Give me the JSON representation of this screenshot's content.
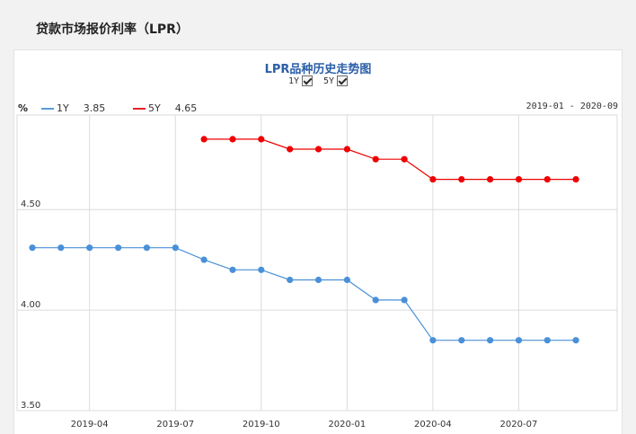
{
  "page_title": "贷款市场报价利率（LPR）",
  "chart_title": "LPR品种历史走势图",
  "toggles": [
    {
      "label": "1Y",
      "checked": true
    },
    {
      "label": "5Y",
      "checked": true
    }
  ],
  "unit_label": "%",
  "legend": [
    {
      "name": "1Y",
      "value": "3.85",
      "color": "#5b9bd5"
    },
    {
      "name": "5Y",
      "value": "4.65",
      "color": "#e8212a"
    }
  ],
  "date_range": "2019-01 - 2020-09",
  "chart_data": {
    "type": "line",
    "x": [
      "2019-02",
      "2019-03",
      "2019-04",
      "2019-05",
      "2019-06",
      "2019-07",
      "2019-08",
      "2019-09",
      "2019-10",
      "2019-11",
      "2019-12",
      "2020-01",
      "2020-02",
      "2020-03",
      "2020-04",
      "2020-05",
      "2020-06",
      "2020-07",
      "2020-08",
      "2020-09"
    ],
    "x_tick_labels": [
      "2019-04",
      "2019-07",
      "2019-10",
      "2020-01",
      "2020-04",
      "2020-07"
    ],
    "y_tick_labels": [
      "3.50",
      "4.00",
      "4.50"
    ],
    "ylim": [
      3.5,
      4.97
    ],
    "grid": true,
    "series": [
      {
        "name": "1Y",
        "color": "#4a90d9",
        "values": [
          4.31,
          4.31,
          4.31,
          4.31,
          4.31,
          4.31,
          4.25,
          4.2,
          4.2,
          4.15,
          4.15,
          4.15,
          4.05,
          4.05,
          3.85,
          3.85,
          3.85,
          3.85,
          3.85,
          3.85
        ]
      },
      {
        "name": "5Y",
        "color": "#ee0000",
        "values": [
          null,
          null,
          null,
          null,
          null,
          null,
          4.85,
          4.85,
          4.85,
          4.8,
          4.8,
          4.8,
          4.75,
          4.75,
          4.65,
          4.65,
          4.65,
          4.65,
          4.65,
          4.65
        ]
      }
    ]
  }
}
